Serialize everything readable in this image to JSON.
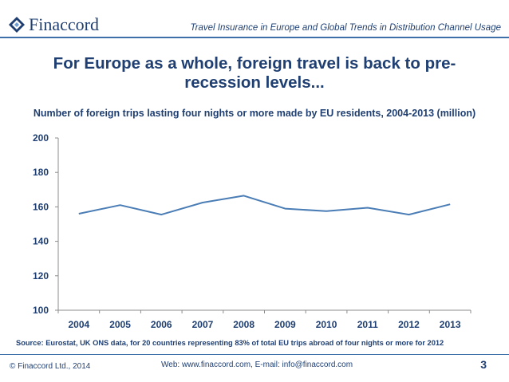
{
  "header": {
    "logo_text": "Finaccord",
    "report_title": "Travel Insurance in Europe and Global Trends in Distribution Channel Usage"
  },
  "slide": {
    "title": "For Europe as a whole, foreign travel is back to pre-recession levels...",
    "source": "Source:  Eurostat, UK ONS data, for 20 countries representing 83% of total EU trips abroad of four nights or more for 2012"
  },
  "footer": {
    "copyright": "© Finaccord Ltd., 2014",
    "web": "Web: www.finaccord.com, E-mail: info@finaccord.com",
    "page_number": "3"
  },
  "colors": {
    "brand": "#1f3f72",
    "accent": "#3f6fa8",
    "line": "#4a7db5",
    "axis": "#8c8c8c"
  },
  "chart_data": {
    "type": "line",
    "title": "Number of foreign trips lasting four nights or more made by EU residents, 2004-2013 (million)",
    "x": [
      "2004",
      "2005",
      "2006",
      "2007",
      "2008",
      "2009",
      "2010",
      "2011",
      "2012",
      "2013"
    ],
    "y": [
      156,
      161,
      155.5,
      162.5,
      166.5,
      159,
      157.5,
      159.5,
      155.5,
      161.5
    ],
    "ylim": [
      100,
      200
    ],
    "yticks": [
      100,
      120,
      140,
      160,
      180,
      200
    ],
    "grid": false,
    "legend": "none"
  }
}
